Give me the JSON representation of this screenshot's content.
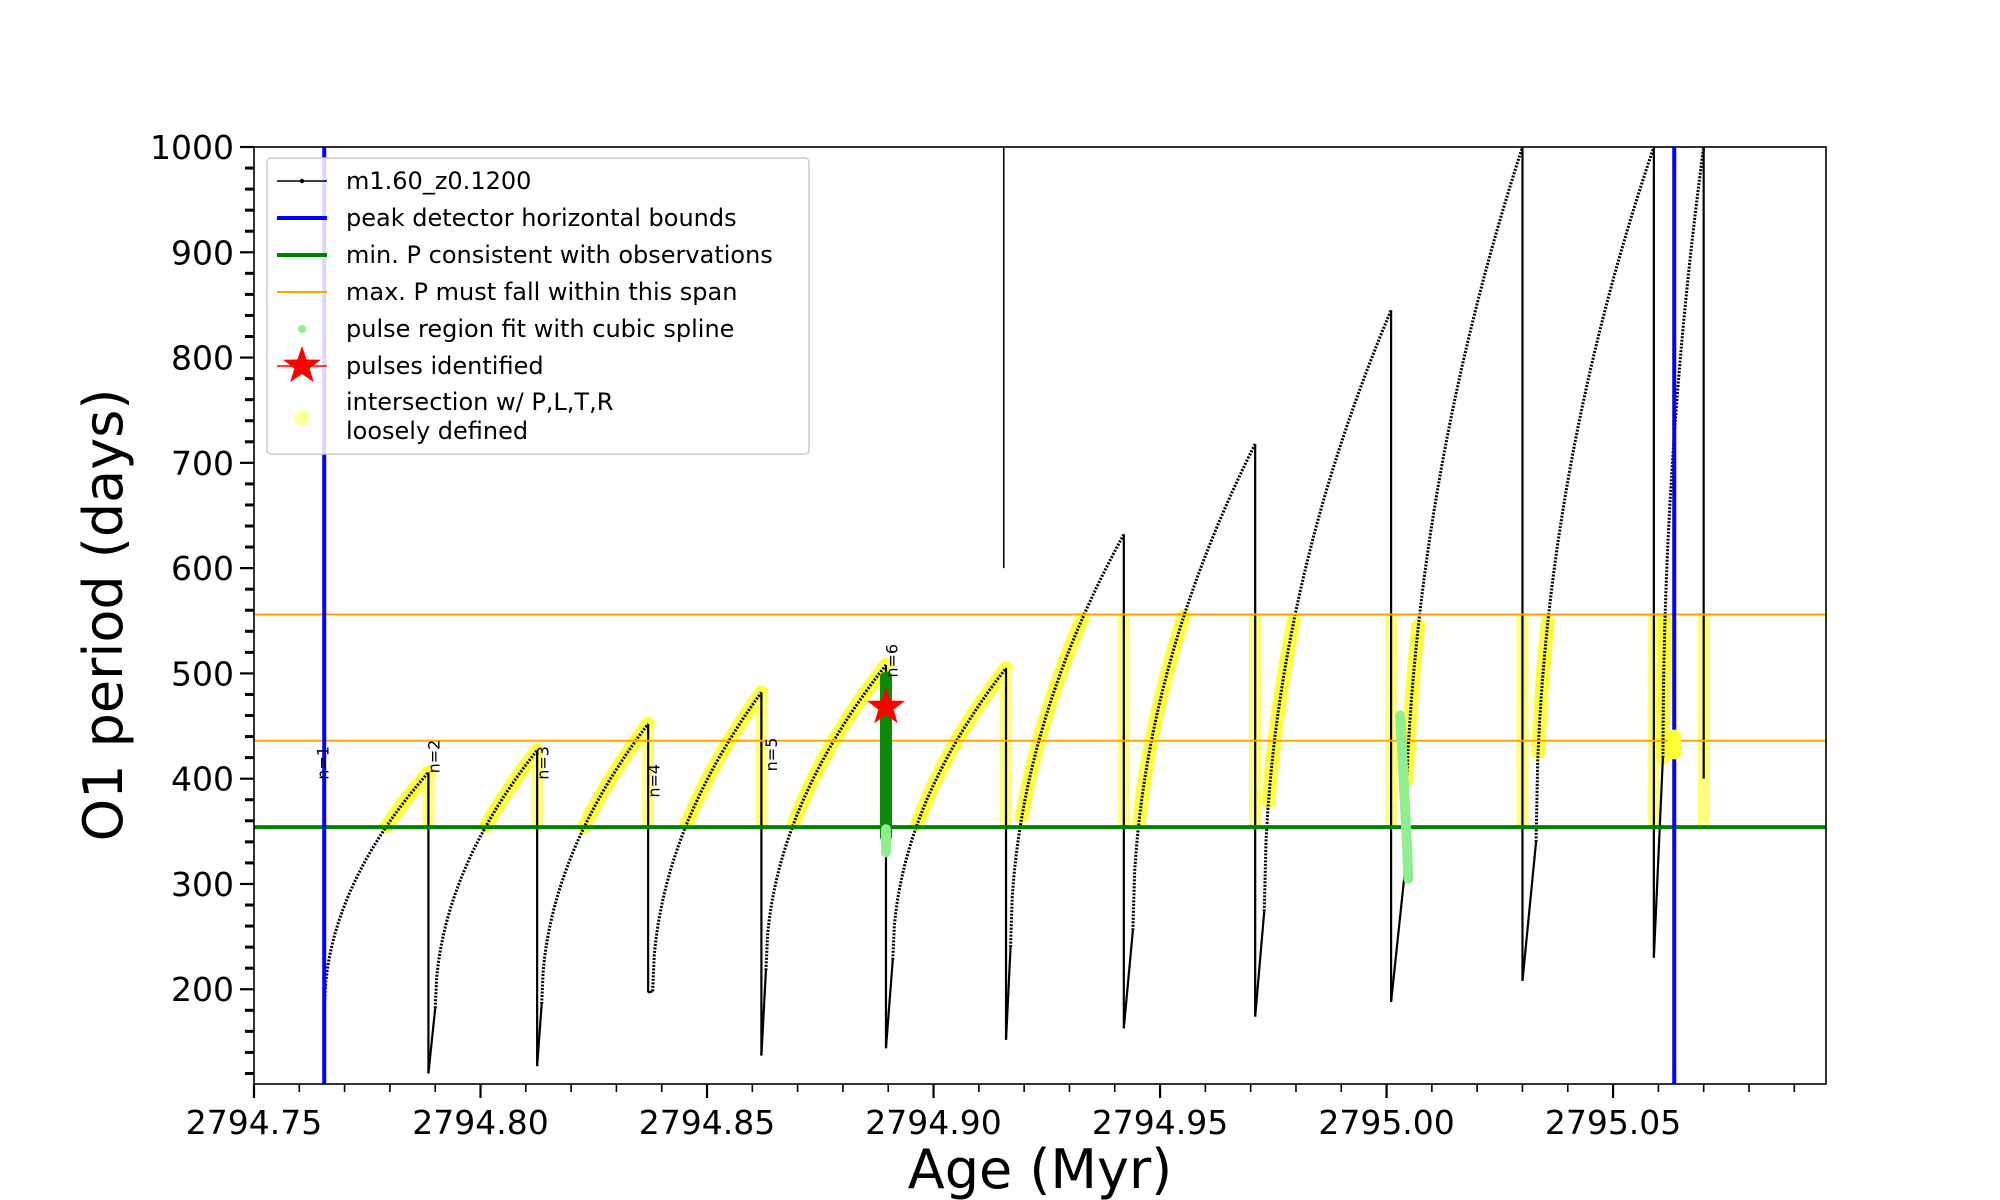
{
  "chart_data": {
    "type": "line",
    "title": "",
    "xlabel": "Age (Myr)",
    "ylabel": "O1 period (days)",
    "xlim": [
      2794.75,
      2795.097
    ],
    "ylim": [
      110,
      1000
    ],
    "x_ticks": [
      2794.75,
      2794.8,
      2794.85,
      2794.9,
      2794.95,
      2795.0,
      2795.05
    ],
    "x_tick_labels": [
      "2794.75",
      "2794.80",
      "2794.85",
      "2794.90",
      "2794.95",
      "2795.00",
      "2795.05"
    ],
    "y_ticks": [
      200,
      300,
      400,
      500,
      600,
      700,
      800,
      900,
      1000
    ],
    "y_tick_labels": [
      "200",
      "300",
      "400",
      "500",
      "600",
      "700",
      "800",
      "900",
      "1000"
    ],
    "grid": false,
    "legend_position": "top-left",
    "legend": [
      {
        "label": "m1.60_z0.1200",
        "style": "line-marker",
        "color": "#000000"
      },
      {
        "label": "peak detector horizontal bounds",
        "style": "line",
        "color": "#0000ff"
      },
      {
        "label": "min. P consistent with observations",
        "style": "line",
        "color": "#008000"
      },
      {
        "label": "max. P must fall within this span",
        "style": "line",
        "color": "#ffa500"
      },
      {
        "label": "pulse region fit with cubic spline",
        "style": "dot",
        "color": "#90ee90"
      },
      {
        "label": "pulses identified",
        "style": "star",
        "color": "#ff0000"
      },
      {
        "label": "intersection w/ P,L,T,R\nloosely defined",
        "style": "dot",
        "color": "#ffffa0"
      }
    ],
    "vertical_lines": [
      {
        "name": "peak detector horizontal bounds",
        "x": 2794.7655,
        "color": "#0000ff"
      },
      {
        "name": "peak detector horizontal bounds",
        "x": 2795.0635,
        "color": "#0000ff"
      }
    ],
    "horizontal_lines": [
      {
        "name": "min. P consistent with observations",
        "y": 354,
        "color": "#008000"
      },
      {
        "name": "max. P must fall within this span",
        "y": 436,
        "color": "#ffa500"
      },
      {
        "name": "max. P must fall within this span",
        "y": 556,
        "color": "#ffa500"
      }
    ],
    "series": [
      {
        "name": "m1.60_z0.1200",
        "color": "#000000",
        "cycles": [
          {
            "start": 2794.7655,
            "end": 2794.7885,
            "min": 180,
            "peak": 406,
            "drop": 120
          },
          {
            "start": 2794.79,
            "end": 2794.8125,
            "min": 182,
            "peak": 427,
            "drop": 127
          },
          {
            "start": 2794.8135,
            "end": 2794.837,
            "min": 186,
            "peak": 452,
            "drop": 197
          },
          {
            "start": 2794.838,
            "end": 2794.862,
            "min": 198,
            "peak": 482,
            "drop": 137
          },
          {
            "start": 2794.863,
            "end": 2794.8895,
            "min": 218,
            "peak": 508,
            "drop": 144
          },
          {
            "start": 2794.891,
            "end": 2794.916,
            "min": 228,
            "peak": 505,
            "drop": 152
          },
          {
            "start": 2794.917,
            "end": 2794.942,
            "min": 240,
            "peak": 632,
            "drop": 163
          },
          {
            "start": 2794.944,
            "end": 2794.971,
            "min": 256,
            "peak": 718,
            "drop": 174
          },
          {
            "start": 2794.973,
            "end": 2795.001,
            "min": 274,
            "peak": 845,
            "drop": 188
          },
          {
            "start": 2795.004,
            "end": 2795.03,
            "min": 310,
            "peak": 1000,
            "drop": 208
          },
          {
            "start": 2795.033,
            "end": 2795.059,
            "min": 340,
            "peak": 1000,
            "drop": 230
          },
          {
            "start": 2795.061,
            "end": 2795.07,
            "min": 420,
            "peak": 1000,
            "drop": 400
          }
        ]
      },
      {
        "name": "intersection w/ P,L,T,R loosely defined",
        "color": "#ffff00",
        "range": [
          354,
          556
        ]
      },
      {
        "name": "pulse region fit with cubic spline",
        "color": "#90ee90",
        "points": [
          [
            2794.8895,
            330
          ],
          [
            2794.8895,
            345
          ],
          [
            2795.003,
            420
          ],
          [
            2795.0045,
            340
          ],
          [
            2795.0048,
            305
          ]
        ]
      },
      {
        "name": "pulses identified",
        "color": "#ff0000",
        "points": [
          [
            2794.8895,
            468
          ]
        ]
      }
    ],
    "annotations": [
      {
        "text": "n=1",
        "x": 2794.7665,
        "y": 415
      },
      {
        "text": "n=2",
        "x": 2794.791,
        "y": 421
      },
      {
        "text": "n=3",
        "x": 2794.815,
        "y": 415
      },
      {
        "text": "n=4",
        "x": 2794.8395,
        "y": 398
      },
      {
        "text": "n=5",
        "x": 2794.8655,
        "y": 423
      },
      {
        "text": "n=6",
        "x": 2794.892,
        "y": 512
      }
    ],
    "reference_line": {
      "x": 2794.9155,
      "y_top": 1000,
      "color": "#000000"
    }
  }
}
